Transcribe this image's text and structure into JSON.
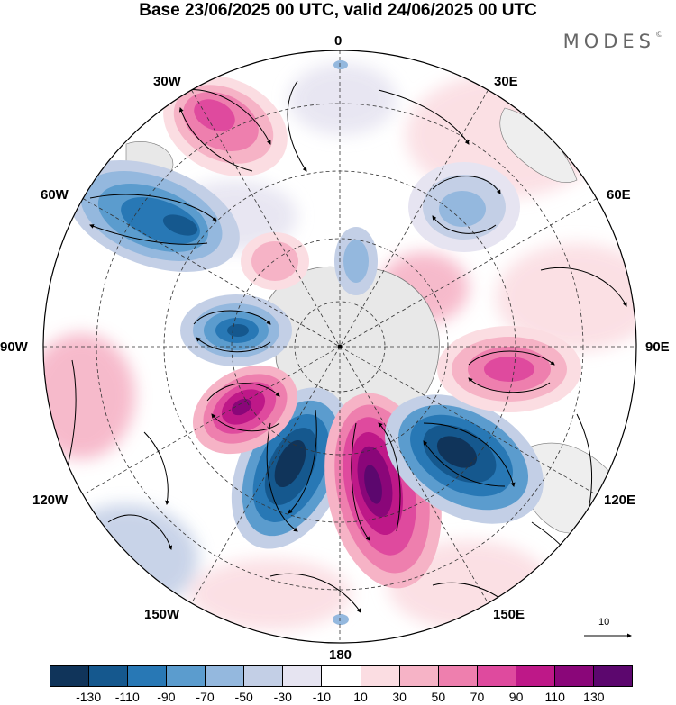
{
  "title": "Base 23/06/2025 00 UTC, valid 24/06/2025 00 UTC",
  "brand": {
    "name": "MODES",
    "mark": "©"
  },
  "map": {
    "projection": "polar stereographic (south pole centred)",
    "meridian_labels": [
      "0",
      "30E",
      "60E",
      "90E",
      "120E",
      "150E",
      "180",
      "150W",
      "120W",
      "90W",
      "60W",
      "30W"
    ],
    "grid": "dashed meridians and latitude circles",
    "field": "shaded anomaly with streamline wind vectors",
    "anomaly_centres": [
      {
        "sign": "negative",
        "strength": "-130",
        "sector": "around 165W"
      },
      {
        "sign": "positive",
        "strength": "130",
        "sector": "around 170E"
      },
      {
        "sign": "negative",
        "strength": "-130",
        "sector": "around 140E"
      },
      {
        "sign": "positive",
        "strength": "110",
        "sector": "around 130W"
      },
      {
        "sign": "negative",
        "strength": "-90",
        "sector": "around 90W"
      },
      {
        "sign": "positive",
        "strength": "70",
        "sector": "around 95E"
      },
      {
        "sign": "negative",
        "strength": "-90",
        "sector": "around 55W"
      },
      {
        "sign": "positive",
        "strength": "70",
        "sector": "around 25W"
      },
      {
        "sign": "negative",
        "strength": "-50",
        "sector": "around 45E"
      }
    ]
  },
  "reference_vector": {
    "label": "10"
  },
  "colorbar": {
    "colors": [
      "#10345a",
      "#15588e",
      "#2878b5",
      "#5b9cce",
      "#94b8de",
      "#c3cfe6",
      "#e6e4f1",
      "#ffffff",
      "#fbdde2",
      "#f6b3c6",
      "#ee7fae",
      "#df4a9e",
      "#be1888",
      "#8a0679",
      "#5c076e"
    ],
    "tick_labels": [
      "-130",
      "-110",
      "-90",
      "-70",
      "-50",
      "-30",
      "-10",
      "10",
      "30",
      "50",
      "70",
      "90",
      "110",
      "130"
    ]
  }
}
